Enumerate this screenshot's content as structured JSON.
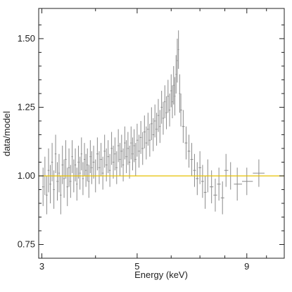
{
  "chart_data": {
    "type": "scatter",
    "xlabel": "Energy (keV)",
    "ylabel": "data/model",
    "xscale": "log",
    "xlim": [
      2.95,
      11.0
    ],
    "ylim": [
      0.7,
      1.61
    ],
    "grid": false,
    "x_ticks": [
      3,
      5,
      9
    ],
    "x_tick_labels": [
      "3",
      "5",
      "9"
    ],
    "y_ticks": [
      0.75,
      1.0,
      1.25,
      1.5
    ],
    "y_tick_labels": [
      "0.75",
      "1.00",
      "1.25",
      "1.50"
    ],
    "reference_line": {
      "y": 1.0,
      "color": "#e8c000"
    },
    "errorbar_color": "#8a8a8a",
    "series": [
      {
        "points": [
          {
            "x": 3.02,
            "y": 0.96,
            "e": 0.07
          },
          {
            "x": 3.05,
            "y": 1.0,
            "e": 0.07
          },
          {
            "x": 3.08,
            "y": 0.93,
            "e": 0.07
          },
          {
            "x": 3.11,
            "y": 1.02,
            "e": 0.08
          },
          {
            "x": 3.14,
            "y": 0.97,
            "e": 0.07
          },
          {
            "x": 3.17,
            "y": 1.05,
            "e": 0.07
          },
          {
            "x": 3.2,
            "y": 0.95,
            "e": 0.07
          },
          {
            "x": 3.23,
            "y": 1.08,
            "e": 0.07
          },
          {
            "x": 3.26,
            "y": 0.98,
            "e": 0.07
          },
          {
            "x": 3.29,
            "y": 1.01,
            "e": 0.07
          },
          {
            "x": 3.32,
            "y": 0.93,
            "e": 0.07
          },
          {
            "x": 3.35,
            "y": 1.04,
            "e": 0.07
          },
          {
            "x": 3.38,
            "y": 0.99,
            "e": 0.07
          },
          {
            "x": 3.41,
            "y": 1.06,
            "e": 0.07
          },
          {
            "x": 3.44,
            "y": 0.96,
            "e": 0.07
          },
          {
            "x": 3.47,
            "y": 1.03,
            "e": 0.07
          },
          {
            "x": 3.5,
            "y": 0.98,
            "e": 0.06
          },
          {
            "x": 3.53,
            "y": 1.07,
            "e": 0.06
          },
          {
            "x": 3.56,
            "y": 1.0,
            "e": 0.06
          },
          {
            "x": 3.59,
            "y": 1.04,
            "e": 0.06
          },
          {
            "x": 3.62,
            "y": 0.97,
            "e": 0.06
          },
          {
            "x": 3.65,
            "y": 1.05,
            "e": 0.06
          },
          {
            "x": 3.68,
            "y": 1.01,
            "e": 0.06
          },
          {
            "x": 3.71,
            "y": 1.08,
            "e": 0.06
          },
          {
            "x": 3.74,
            "y": 0.99,
            "e": 0.06
          },
          {
            "x": 3.77,
            "y": 1.06,
            "e": 0.06
          },
          {
            "x": 3.8,
            "y": 1.02,
            "e": 0.06
          },
          {
            "x": 3.83,
            "y": 1.04,
            "e": 0.06
          },
          {
            "x": 3.86,
            "y": 0.98,
            "e": 0.06
          },
          {
            "x": 3.89,
            "y": 1.07,
            "e": 0.06
          },
          {
            "x": 3.92,
            "y": 1.03,
            "e": 0.06
          },
          {
            "x": 3.96,
            "y": 1.05,
            "e": 0.06
          },
          {
            "x": 4.0,
            "y": 1.0,
            "e": 0.06
          },
          {
            "x": 4.04,
            "y": 1.08,
            "e": 0.06
          },
          {
            "x": 4.08,
            "y": 1.03,
            "e": 0.06
          },
          {
            "x": 4.12,
            "y": 1.06,
            "e": 0.06
          },
          {
            "x": 4.16,
            "y": 1.01,
            "e": 0.06
          },
          {
            "x": 4.2,
            "y": 1.09,
            "e": 0.06
          },
          {
            "x": 4.24,
            "y": 1.04,
            "e": 0.06
          },
          {
            "x": 4.28,
            "y": 1.07,
            "e": 0.06
          },
          {
            "x": 4.32,
            "y": 1.02,
            "e": 0.06
          },
          {
            "x": 4.36,
            "y": 1.1,
            "e": 0.06
          },
          {
            "x": 4.4,
            "y": 1.05,
            "e": 0.06
          },
          {
            "x": 4.44,
            "y": 1.08,
            "e": 0.06
          },
          {
            "x": 4.48,
            "y": 1.03,
            "e": 0.06
          },
          {
            "x": 4.52,
            "y": 1.11,
            "e": 0.06
          },
          {
            "x": 4.56,
            "y": 1.06,
            "e": 0.06
          },
          {
            "x": 4.6,
            "y": 1.09,
            "e": 0.06
          },
          {
            "x": 4.64,
            "y": 1.04,
            "e": 0.06
          },
          {
            "x": 4.68,
            "y": 1.12,
            "e": 0.06
          },
          {
            "x": 4.72,
            "y": 1.07,
            "e": 0.06
          },
          {
            "x": 4.76,
            "y": 1.1,
            "e": 0.06
          },
          {
            "x": 4.8,
            "y": 1.05,
            "e": 0.06
          },
          {
            "x": 4.84,
            "y": 1.12,
            "e": 0.06
          },
          {
            "x": 4.88,
            "y": 1.08,
            "e": 0.06
          },
          {
            "x": 4.92,
            "y": 1.11,
            "e": 0.06
          },
          {
            "x": 4.96,
            "y": 1.06,
            "e": 0.06
          },
          {
            "x": 5.0,
            "y": 1.13,
            "e": 0.06
          },
          {
            "x": 5.05,
            "y": 1.09,
            "e": 0.06
          },
          {
            "x": 5.1,
            "y": 1.14,
            "e": 0.06
          },
          {
            "x": 5.15,
            "y": 1.1,
            "e": 0.06
          },
          {
            "x": 5.2,
            "y": 1.16,
            "e": 0.06
          },
          {
            "x": 5.25,
            "y": 1.12,
            "e": 0.06
          },
          {
            "x": 5.3,
            "y": 1.17,
            "e": 0.06
          },
          {
            "x": 5.35,
            "y": 1.13,
            "e": 0.06
          },
          {
            "x": 5.4,
            "y": 1.19,
            "e": 0.06
          },
          {
            "x": 5.45,
            "y": 1.15,
            "e": 0.06
          },
          {
            "x": 5.5,
            "y": 1.2,
            "e": 0.06
          },
          {
            "x": 5.55,
            "y": 1.17,
            "e": 0.06
          },
          {
            "x": 5.6,
            "y": 1.22,
            "e": 0.06
          },
          {
            "x": 5.65,
            "y": 1.18,
            "e": 0.06
          },
          {
            "x": 5.7,
            "y": 1.25,
            "e": 0.06
          },
          {
            "x": 5.75,
            "y": 1.21,
            "e": 0.06
          },
          {
            "x": 5.8,
            "y": 1.27,
            "e": 0.06
          },
          {
            "x": 5.85,
            "y": 1.23,
            "e": 0.06
          },
          {
            "x": 5.9,
            "y": 1.29,
            "e": 0.06
          },
          {
            "x": 5.95,
            "y": 1.24,
            "e": 0.06
          },
          {
            "x": 6.0,
            "y": 1.31,
            "e": 0.06
          },
          {
            "x": 6.04,
            "y": 1.27,
            "e": 0.06
          },
          {
            "x": 6.08,
            "y": 1.33,
            "e": 0.07
          },
          {
            "x": 6.12,
            "y": 1.29,
            "e": 0.07
          },
          {
            "x": 6.16,
            "y": 1.37,
            "e": 0.07
          },
          {
            "x": 6.2,
            "y": 1.42,
            "e": 0.08
          },
          {
            "x": 6.24,
            "y": 1.46,
            "e": 0.07
          },
          {
            "x": 6.28,
            "y": 1.3,
            "e": 0.07
          },
          {
            "x": 6.32,
            "y": 1.24,
            "e": 0.06
          },
          {
            "x": 6.4,
            "y": 1.18,
            "e": 0.06
          },
          {
            "x": 6.5,
            "y": 1.12,
            "e": 0.06
          },
          {
            "x": 6.6,
            "y": 1.09,
            "e": 0.06
          },
          {
            "x": 6.7,
            "y": 1.06,
            "e": 0.06
          },
          {
            "x": 6.8,
            "y": 1.02,
            "e": 0.06
          },
          {
            "x": 6.9,
            "y": 0.99,
            "e": 0.06
          },
          {
            "x": 7.0,
            "y": 1.03,
            "e": 0.06
          },
          {
            "x": 7.1,
            "y": 0.98,
            "e": 0.06
          },
          {
            "x": 7.2,
            "y": 0.94,
            "e": 0.06
          },
          {
            "x": 7.3,
            "y": 1.0,
            "e": 0.06
          },
          {
            "x": 7.45,
            "y": 0.96,
            "e": 0.06
          },
          {
            "x": 7.6,
            "y": 0.93,
            "e": 0.06
          },
          {
            "x": 7.75,
            "y": 0.97,
            "e": 0.06
          },
          {
            "x": 7.9,
            "y": 0.92,
            "e": 0.06
          },
          {
            "x": 8.05,
            "y": 1.02,
            "e": 0.06
          },
          {
            "x": 8.25,
            "y": 1.0,
            "e": 0.05
          },
          {
            "x": 8.55,
            "y": 0.97,
            "e": 0.06
          },
          {
            "x": 9.0,
            "y": 0.98,
            "e": 0.05
          },
          {
            "x": 9.6,
            "y": 1.01,
            "e": 0.05
          }
        ]
      }
    ]
  }
}
